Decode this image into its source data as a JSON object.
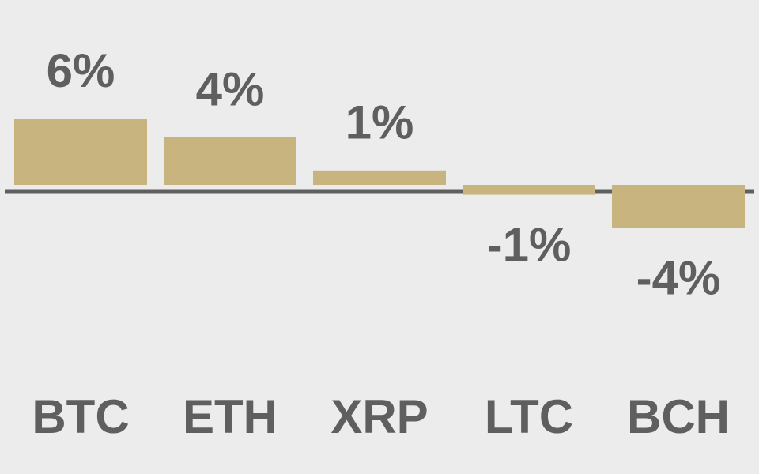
{
  "chart_data": {
    "type": "bar",
    "categories": [
      "BTC",
      "ETH",
      "XRP",
      "LTC",
      "BCH"
    ],
    "values": [
      6,
      4.3,
      1.3,
      -0.9,
      -3.9
    ],
    "value_labels": [
      "6%",
      "4%",
      "1%",
      "-1%",
      "-4%"
    ],
    "color": "#c8b47e"
  }
}
